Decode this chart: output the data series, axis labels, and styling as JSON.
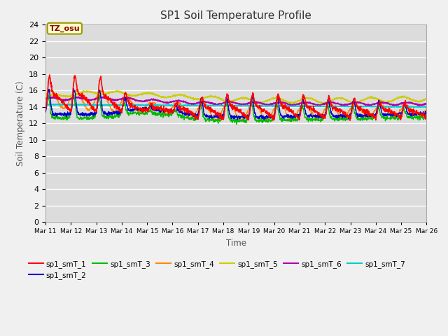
{
  "title": "SP1 Soil Temperature Profile",
  "xlabel": "Time",
  "ylabel": "Soil Temperature (C)",
  "ylim": [
    0,
    24
  ],
  "yticks": [
    0,
    2,
    4,
    6,
    8,
    10,
    12,
    14,
    16,
    18,
    20,
    22,
    24
  ],
  "bg_color": "#dcdcdc",
  "plot_bg_color": "#dcdcdc",
  "series_colors": {
    "sp1_smT_1": "#ff0000",
    "sp1_smT_2": "#0000cc",
    "sp1_smT_3": "#00bb00",
    "sp1_smT_4": "#ff8800",
    "sp1_smT_5": "#cccc00",
    "sp1_smT_6": "#aa00aa",
    "sp1_smT_7": "#00cccc"
  },
  "tz_label": "TZ_osu",
  "xtick_labels": [
    "Mar 11",
    "Mar 12",
    "Mar 13",
    "Mar 14",
    "Mar 15",
    "Mar 16",
    "Mar 17",
    "Mar 18",
    "Mar 19",
    "Mar 20",
    "Mar 21",
    "Mar 22",
    "Mar 23",
    "Mar 24",
    "Mar 25",
    "Mar 26"
  ]
}
